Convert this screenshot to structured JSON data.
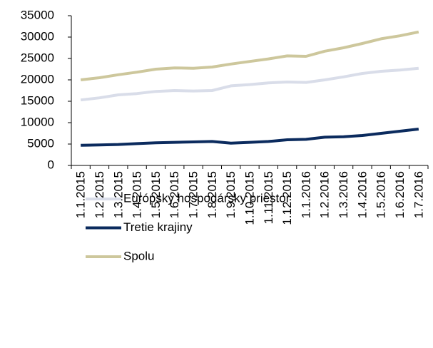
{
  "chart_data": {
    "type": "line",
    "categories": [
      "1.1.2015",
      "1.2.2015",
      "1.3.2015",
      "1.4.2015",
      "1.5.2015",
      "1.6.2015",
      "1.7.2015",
      "1.8.2015",
      "1.9.2015",
      "1.10.2015",
      "1.11.2015",
      "1.12.2015",
      "1.1.2016",
      "1.2.2016",
      "1.3.2016",
      "1.4.2016",
      "1.5.2016",
      "1.6.2016",
      "1.7.2016"
    ],
    "series": [
      {
        "name": "Európsky hospodársky priestor",
        "color": "#d9dde9",
        "values": [
          15300,
          15800,
          16500,
          16800,
          17300,
          17500,
          17400,
          17500,
          18600,
          18900,
          19300,
          19500,
          19400,
          20000,
          20700,
          21500,
          22000,
          22300,
          22700
        ]
      },
      {
        "name": "Tretie krajiny",
        "color": "#0b2b5e",
        "values": [
          4700,
          4800,
          4900,
          5100,
          5300,
          5400,
          5500,
          5600,
          5200,
          5400,
          5600,
          6000,
          6100,
          6600,
          6700,
          7000,
          7500,
          8000,
          8500
        ]
      },
      {
        "name": "Spolu",
        "color": "#cdc79c",
        "values": [
          20000,
          20500,
          21200,
          21800,
          22500,
          22800,
          22700,
          23000,
          23700,
          24300,
          24900,
          25600,
          25500,
          26700,
          27500,
          28500,
          29600,
          30300,
          31200
        ]
      }
    ],
    "ylim": [
      0,
      35000
    ],
    "yticks": [
      0,
      5000,
      10000,
      15000,
      20000,
      25000,
      30000,
      35000
    ]
  }
}
